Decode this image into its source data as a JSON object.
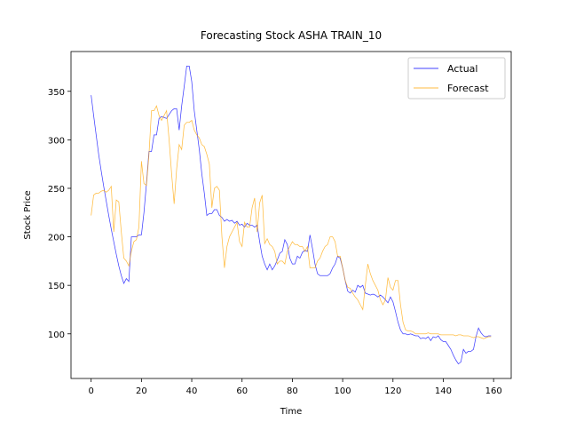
{
  "chart_data": {
    "type": "line",
    "title": "Forecasting Stock ASHA TRAIN_10",
    "x_label": "Time",
    "y_label": "Stock Price",
    "x": [
      0,
      1,
      2,
      3,
      4,
      5,
      6,
      7,
      8,
      9,
      10,
      11,
      12,
      13,
      14,
      15,
      16,
      17,
      18,
      19,
      20,
      21,
      22,
      23,
      24,
      25,
      26,
      27,
      28,
      29,
      30,
      31,
      32,
      33,
      34,
      35,
      36,
      37,
      38,
      39,
      40,
      41,
      42,
      43,
      44,
      45,
      46,
      47,
      48,
      49,
      50,
      51,
      52,
      53,
      54,
      55,
      56,
      57,
      58,
      59,
      60,
      61,
      62,
      63,
      64,
      65,
      66,
      67,
      68,
      69,
      70,
      71,
      72,
      73,
      74,
      75,
      76,
      77,
      78,
      79,
      80,
      81,
      82,
      83,
      84,
      85,
      86,
      87,
      88,
      89,
      90,
      91,
      92,
      93,
      94,
      95,
      96,
      97,
      98,
      99,
      100,
      101,
      102,
      103,
      104,
      105,
      106,
      107,
      108,
      109,
      110,
      111,
      112,
      113,
      114,
      115,
      116,
      117,
      118,
      119,
      120,
      121,
      122,
      123,
      124,
      125,
      126,
      127,
      128,
      129,
      130,
      131,
      132,
      133,
      134,
      135,
      136,
      137,
      138,
      139,
      140,
      141,
      142,
      143,
      144,
      145,
      146,
      147,
      148,
      149,
      150,
      151,
      152,
      153,
      154,
      155,
      156,
      157,
      158,
      159
    ],
    "series": [
      {
        "name": "Actual",
        "color": "#0000ff",
        "values": [
          346,
          325,
          305,
          285,
          268,
          252,
          237,
          222,
          208,
          195,
          182,
          170,
          160,
          152,
          157,
          154,
          200,
          200,
          200,
          202,
          202,
          225,
          255,
          288,
          288,
          305,
          305,
          322,
          324,
          323,
          322,
          326,
          330,
          332,
          332,
          310,
          335,
          355,
          376,
          376,
          360,
          330,
          310,
          290,
          265,
          245,
          222,
          224,
          224,
          228,
          228,
          222,
          220,
          216,
          218,
          216,
          217,
          214,
          216,
          212,
          213,
          210,
          214,
          212,
          212,
          210,
          212,
          195,
          180,
          172,
          166,
          172,
          166,
          170,
          176,
          183,
          185,
          197,
          192,
          178,
          172,
          172,
          180,
          178,
          184,
          186,
          185,
          202,
          188,
          172,
          162,
          160,
          160,
          160,
          160,
          162,
          168,
          172,
          180,
          178,
          168,
          155,
          144,
          142,
          145,
          143,
          150,
          148,
          150,
          142,
          141,
          140,
          141,
          140,
          138,
          140,
          138,
          135,
          132,
          138,
          133,
          123,
          112,
          104,
          100,
          100,
          99,
          100,
          99,
          98,
          98,
          95,
          96,
          95,
          97,
          93,
          97,
          96,
          98,
          94,
          92,
          92,
          88,
          84,
          78,
          73,
          69,
          71,
          84,
          80,
          82,
          82,
          84,
          97,
          106,
          101,
          98,
          97,
          98,
          98
        ]
      },
      {
        "name": "Forecast",
        "color": "#ffa500",
        "values": [
          222,
          243,
          245,
          245,
          247,
          248,
          246,
          248,
          252,
          205,
          238,
          236,
          205,
          178,
          175,
          170,
          185,
          195,
          197,
          210,
          278,
          255,
          253,
          285,
          330,
          330,
          335,
          325,
          320,
          325,
          330,
          300,
          265,
          234,
          270,
          295,
          290,
          315,
          318,
          318,
          320,
          310,
          305,
          302,
          295,
          293,
          285,
          275,
          230,
          250,
          252,
          248,
          200,
          168,
          190,
          200,
          205,
          210,
          215,
          195,
          190,
          215,
          210,
          210,
          230,
          240,
          205,
          235,
          243,
          193,
          198,
          192,
          190,
          185,
          172,
          175,
          175,
          172,
          185,
          190,
          195,
          192,
          192,
          190,
          190,
          185,
          190,
          168,
          168,
          168,
          175,
          178,
          185,
          190,
          192,
          200,
          200,
          195,
          180,
          180,
          168,
          155,
          148,
          147,
          142,
          138,
          135,
          130,
          125,
          150,
          172,
          162,
          155,
          150,
          145,
          135,
          130,
          135,
          158,
          148,
          145,
          155,
          155,
          130,
          112,
          104,
          103,
          103,
          102,
          100,
          100,
          100,
          100,
          100,
          101,
          100,
          100,
          100,
          100,
          99,
          99,
          99,
          99,
          99,
          99,
          98,
          99,
          99,
          98,
          98,
          98,
          97,
          96,
          97,
          97,
          96,
          95,
          96,
          97,
          97
        ]
      }
    ],
    "xlim": [
      -8,
      167
    ],
    "ylim": [
      54,
      391
    ],
    "xticks": [
      0,
      20,
      40,
      60,
      80,
      100,
      120,
      140,
      160
    ],
    "yticks": [
      100,
      150,
      200,
      250,
      300,
      350
    ],
    "legend": "upper right"
  }
}
